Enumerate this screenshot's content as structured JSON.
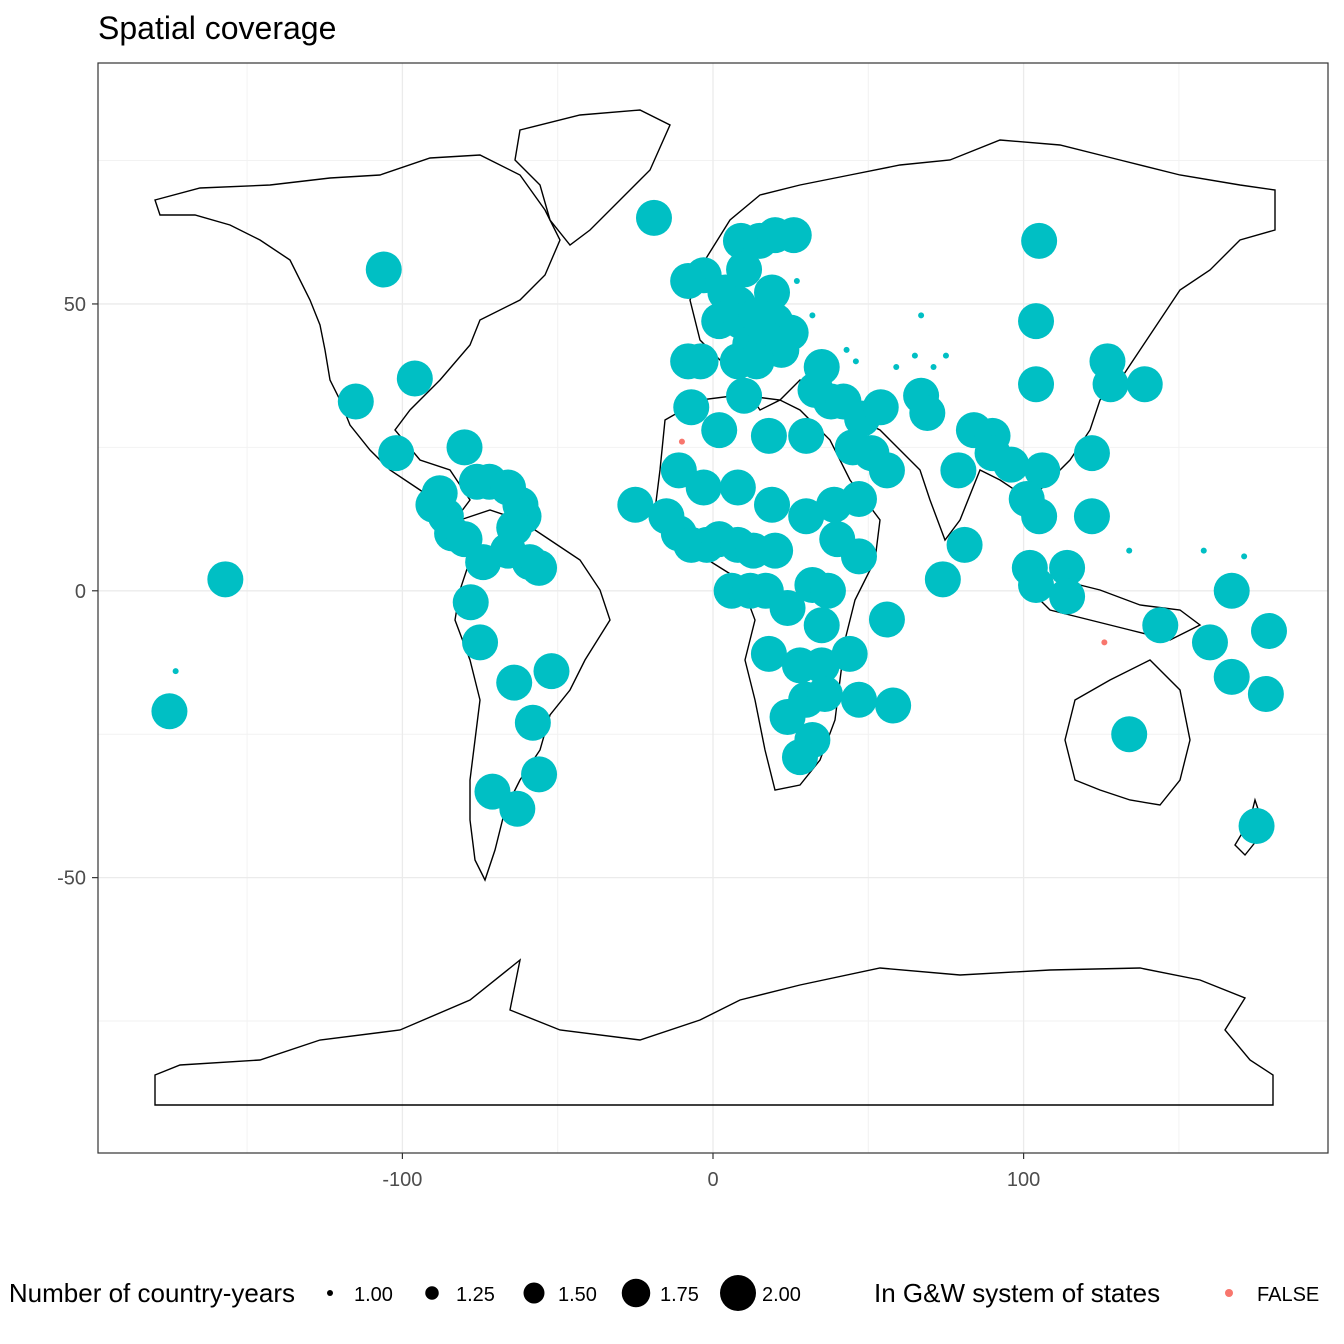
{
  "chart_data": {
    "type": "scatter",
    "title": "Spatial coverage",
    "xlabel": "",
    "ylabel": "",
    "xlim": [
      -198,
      198
    ],
    "ylim": [
      -98,
      92
    ],
    "x_ticks": [
      -100,
      0,
      100
    ],
    "x_tick_labels": [
      "-100",
      "0",
      "100"
    ],
    "y_ticks": [
      -50,
      0,
      50
    ],
    "y_tick_labels": [
      "-50",
      "0",
      "50"
    ],
    "grid": true,
    "colors": {
      "in_system": "#00BFC4",
      "not_in_system": "#F8766D"
    },
    "legend": {
      "placement": "bottom",
      "size_title": "Number of country-years",
      "size_labels": [
        "1.00",
        "1.25",
        "1.50",
        "1.75",
        "2.00"
      ],
      "size_values": [
        1.0,
        1.25,
        1.5,
        1.75,
        2.0
      ],
      "color_title": "In G&W system of states",
      "color_labels": [
        "FALSE"
      ]
    },
    "points": [
      {
        "x": -19,
        "y": 65,
        "n": 2
      },
      {
        "x": -106,
        "y": 56,
        "n": 2
      },
      {
        "x": -96,
        "y": 37,
        "n": 2
      },
      {
        "x": -115,
        "y": 33,
        "n": 2
      },
      {
        "x": -102,
        "y": 24,
        "n": 2
      },
      {
        "x": -80,
        "y": 25,
        "n": 2
      },
      {
        "x": -88,
        "y": 17,
        "n": 2
      },
      {
        "x": -90,
        "y": 15,
        "n": 2
      },
      {
        "x": -86,
        "y": 13,
        "n": 2
      },
      {
        "x": -84,
        "y": 10,
        "n": 2
      },
      {
        "x": -80,
        "y": 9,
        "n": 2
      },
      {
        "x": -76,
        "y": 19,
        "n": 2
      },
      {
        "x": -72,
        "y": 19,
        "n": 2
      },
      {
        "x": -66,
        "y": 18,
        "n": 2
      },
      {
        "x": -62,
        "y": 15,
        "n": 2
      },
      {
        "x": -61,
        "y": 13,
        "n": 2
      },
      {
        "x": -64,
        "y": 11,
        "n": 2
      },
      {
        "x": -66,
        "y": 7,
        "n": 2
      },
      {
        "x": -59,
        "y": 5,
        "n": 2
      },
      {
        "x": -56,
        "y": 4,
        "n": 2
      },
      {
        "x": -74,
        "y": 5,
        "n": 2
      },
      {
        "x": -78,
        "y": -2,
        "n": 2
      },
      {
        "x": -75,
        "y": -9,
        "n": 2
      },
      {
        "x": -64,
        "y": -16,
        "n": 2
      },
      {
        "x": -52,
        "y": -14,
        "n": 2
      },
      {
        "x": -58,
        "y": -23,
        "n": 2
      },
      {
        "x": -56,
        "y": -32,
        "n": 2
      },
      {
        "x": -71,
        "y": -35,
        "n": 2
      },
      {
        "x": -63,
        "y": -38,
        "n": 2
      },
      {
        "x": -157,
        "y": 2,
        "n": 2
      },
      {
        "x": -175,
        "y": -21,
        "n": 2
      },
      {
        "x": -173,
        "y": -14,
        "n": 1
      },
      {
        "x": 9,
        "y": 61,
        "n": 2
      },
      {
        "x": 15,
        "y": 61,
        "n": 2
      },
      {
        "x": 20,
        "y": 62,
        "n": 2
      },
      {
        "x": 26,
        "y": 62,
        "n": 2
      },
      {
        "x": -3,
        "y": 55,
        "n": 2
      },
      {
        "x": -8,
        "y": 54,
        "n": 2
      },
      {
        "x": 10,
        "y": 56,
        "n": 2
      },
      {
        "x": 4,
        "y": 52,
        "n": 2
      },
      {
        "x": 8,
        "y": 50,
        "n": 2
      },
      {
        "x": 19,
        "y": 52,
        "n": 2
      },
      {
        "x": 2,
        "y": 47,
        "n": 2
      },
      {
        "x": 9,
        "y": 47,
        "n": 2
      },
      {
        "x": 14,
        "y": 48,
        "n": 2
      },
      {
        "x": 20,
        "y": 47,
        "n": 2
      },
      {
        "x": 25,
        "y": 45,
        "n": 2
      },
      {
        "x": 12,
        "y": 43,
        "n": 2
      },
      {
        "x": 17,
        "y": 44,
        "n": 2
      },
      {
        "x": 22,
        "y": 42,
        "n": 2
      },
      {
        "x": 8,
        "y": 40,
        "n": 2
      },
      {
        "x": 14,
        "y": 40,
        "n": 2
      },
      {
        "x": 10,
        "y": 34,
        "n": 2
      },
      {
        "x": -8,
        "y": 40,
        "n": 2
      },
      {
        "x": -4,
        "y": 40,
        "n": 2
      },
      {
        "x": -7,
        "y": 32,
        "n": 2
      },
      {
        "x": 35,
        "y": 39,
        "n": 2
      },
      {
        "x": 33,
        "y": 35,
        "n": 2
      },
      {
        "x": 38,
        "y": 33,
        "n": 2
      },
      {
        "x": 42,
        "y": 33,
        "n": 2
      },
      {
        "x": 48,
        "y": 30,
        "n": 2
      },
      {
        "x": 54,
        "y": 32,
        "n": 2
      },
      {
        "x": 51,
        "y": 24,
        "n": 2
      },
      {
        "x": 45,
        "y": 25,
        "n": 2
      },
      {
        "x": 56,
        "y": 21,
        "n": 2
      },
      {
        "x": 2,
        "y": 28,
        "n": 2
      },
      {
        "x": 18,
        "y": 27,
        "n": 2
      },
      {
        "x": 30,
        "y": 27,
        "n": 2
      },
      {
        "x": 67,
        "y": 34,
        "n": 2
      },
      {
        "x": 69,
        "y": 31,
        "n": 2
      },
      {
        "x": 105,
        "y": 61,
        "n": 2
      },
      {
        "x": 104,
        "y": 47,
        "n": 2
      },
      {
        "x": 104,
        "y": 36,
        "n": 2
      },
      {
        "x": 127,
        "y": 40,
        "n": 2
      },
      {
        "x": 128,
        "y": 36,
        "n": 2
      },
      {
        "x": 139,
        "y": 36,
        "n": 2
      },
      {
        "x": 84,
        "y": 28,
        "n": 2
      },
      {
        "x": 90,
        "y": 27,
        "n": 2
      },
      {
        "x": 90,
        "y": 24,
        "n": 2
      },
      {
        "x": 96,
        "y": 22,
        "n": 2
      },
      {
        "x": 79,
        "y": 21,
        "n": 2
      },
      {
        "x": 106,
        "y": 21,
        "n": 2
      },
      {
        "x": 101,
        "y": 16,
        "n": 2
      },
      {
        "x": 105,
        "y": 13,
        "n": 2
      },
      {
        "x": 122,
        "y": 24,
        "n": 2
      },
      {
        "x": 122,
        "y": 13,
        "n": 2
      },
      {
        "x": 81,
        "y": 8,
        "n": 2
      },
      {
        "x": 74,
        "y": 2,
        "n": 2
      },
      {
        "x": 102,
        "y": 4,
        "n": 2
      },
      {
        "x": 104,
        "y": 1,
        "n": 2
      },
      {
        "x": 114,
        "y": 4,
        "n": 2
      },
      {
        "x": 114,
        "y": -1,
        "n": 2
      },
      {
        "x": 144,
        "y": -6,
        "n": 2
      },
      {
        "x": 160,
        "y": -9,
        "n": 2
      },
      {
        "x": 167,
        "y": 0,
        "n": 2
      },
      {
        "x": 179,
        "y": -7,
        "n": 2
      },
      {
        "x": 167,
        "y": -15,
        "n": 2
      },
      {
        "x": 178,
        "y": -18,
        "n": 2
      },
      {
        "x": 134,
        "y": -25,
        "n": 2
      },
      {
        "x": 175,
        "y": -41,
        "n": 2
      },
      {
        "x": -25,
        "y": 15,
        "n": 2
      },
      {
        "x": -11,
        "y": 21,
        "n": 2
      },
      {
        "x": -3,
        "y": 18,
        "n": 2
      },
      {
        "x": 8,
        "y": 18,
        "n": 2
      },
      {
        "x": 19,
        "y": 15,
        "n": 2
      },
      {
        "x": 30,
        "y": 13,
        "n": 2
      },
      {
        "x": -15,
        "y": 13,
        "n": 2
      },
      {
        "x": -11,
        "y": 10,
        "n": 2
      },
      {
        "x": -7,
        "y": 8,
        "n": 2
      },
      {
        "x": -2,
        "y": 8,
        "n": 2
      },
      {
        "x": 2,
        "y": 9,
        "n": 2
      },
      {
        "x": 8,
        "y": 8,
        "n": 2
      },
      {
        "x": 13,
        "y": 7,
        "n": 2
      },
      {
        "x": 20,
        "y": 7,
        "n": 2
      },
      {
        "x": 40,
        "y": 9,
        "n": 2
      },
      {
        "x": 47,
        "y": 6,
        "n": 2
      },
      {
        "x": 39,
        "y": 15,
        "n": 2
      },
      {
        "x": 47,
        "y": 16,
        "n": 2
      },
      {
        "x": 6,
        "y": 0,
        "n": 2
      },
      {
        "x": 12,
        "y": 0,
        "n": 2
      },
      {
        "x": 17,
        "y": 0,
        "n": 2
      },
      {
        "x": 24,
        "y": -3,
        "n": 2
      },
      {
        "x": 32,
        "y": 1,
        "n": 2
      },
      {
        "x": 37,
        "y": 0,
        "n": 2
      },
      {
        "x": 35,
        "y": -6,
        "n": 2
      },
      {
        "x": 18,
        "y": -11,
        "n": 2
      },
      {
        "x": 28,
        "y": -13,
        "n": 2
      },
      {
        "x": 35,
        "y": -13,
        "n": 2
      },
      {
        "x": 44,
        "y": -11,
        "n": 2
      },
      {
        "x": 56,
        "y": -5,
        "n": 2
      },
      {
        "x": 24,
        "y": -22,
        "n": 2
      },
      {
        "x": 30,
        "y": -19,
        "n": 2
      },
      {
        "x": 36,
        "y": -18,
        "n": 2
      },
      {
        "x": 47,
        "y": -19,
        "n": 2
      },
      {
        "x": 58,
        "y": -20,
        "n": 2
      },
      {
        "x": 32,
        "y": -26,
        "n": 2
      },
      {
        "x": 28,
        "y": -29,
        "n": 2
      },
      {
        "x": 27,
        "y": 54,
        "n": 1
      },
      {
        "x": 32,
        "y": 48,
        "n": 1
      },
      {
        "x": 43,
        "y": 42,
        "n": 1
      },
      {
        "x": 46,
        "y": 40,
        "n": 1
      },
      {
        "x": 59,
        "y": 39,
        "n": 1
      },
      {
        "x": 67,
        "y": 48,
        "n": 1
      },
      {
        "x": 65,
        "y": 41,
        "n": 1
      },
      {
        "x": 75,
        "y": 41,
        "n": 1
      },
      {
        "x": 71,
        "y": 39,
        "n": 1
      },
      {
        "x": 134,
        "y": 7,
        "n": 1
      },
      {
        "x": 158,
        "y": 7,
        "n": 1
      },
      {
        "x": 171,
        "y": 6,
        "n": 1
      },
      {
        "x": -10,
        "y": 26,
        "n": 1,
        "color": "not_in_system"
      },
      {
        "x": 126,
        "y": -9,
        "n": 1,
        "color": "not_in_system"
      }
    ]
  }
}
